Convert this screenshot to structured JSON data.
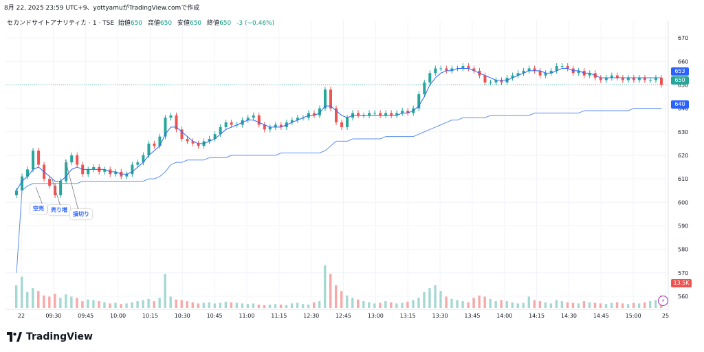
{
  "caption": "8月 22, 2025 23:59 UTC+9、yottyamuがTradingView.comで作成",
  "legend": {
    "symbol": "セカンドサイトアナリティカ · 1 · TSE",
    "open_label": "始値",
    "open_value": "650",
    "high_label": "高値",
    "high_value": "650",
    "low_label": "安値",
    "low_value": "650",
    "close_label": "終値",
    "close_value": "650",
    "change": "-3 (−0.46%)"
  },
  "annotations": [
    "空売",
    "売り増",
    "損切り"
  ],
  "badges": {
    "ma_last": "653",
    "price_last": "650",
    "vwap_last": "640",
    "volume_last": "13.5K"
  },
  "flash_icon": "lightning-icon",
  "brand": "TradingView",
  "colors": {
    "up": "#26a69a",
    "down": "#ef5350",
    "vol_up": "#a5d8d3",
    "vol_down": "#f7a9a7",
    "ma": "#2962ff",
    "vwap": "#5b8def",
    "grid": "#f0f3fa"
  },
  "chart_data": {
    "type": "candlestick",
    "price_axis": {
      "ylim": [
        555,
        675
      ],
      "ticks": [
        670,
        660,
        650,
        640,
        630,
        620,
        610,
        600,
        590,
        580,
        570,
        560
      ]
    },
    "time_axis": {
      "tick_labels": [
        "22",
        "09:30",
        "09:45",
        "10:00",
        "10:15",
        "10:30",
        "10:45",
        "11:00",
        "11:15",
        "12:30",
        "12:45",
        "13:00",
        "13:15",
        "13:30",
        "13:45",
        "14:00",
        "14:15",
        "14:30",
        "14:45",
        "15:00",
        "25"
      ]
    },
    "last_price": 650,
    "series_close": [
      605,
      611,
      614,
      622,
      616,
      610,
      607,
      603,
      609,
      617,
      620,
      616,
      612,
      614,
      615,
      613,
      614,
      612,
      613,
      611,
      612,
      616,
      617,
      620,
      625,
      624,
      628,
      636,
      637,
      631,
      627,
      626,
      625,
      624,
      626,
      627,
      629,
      632,
      634,
      633,
      633,
      635,
      636,
      637,
      633,
      631,
      632,
      633,
      632,
      634,
      635,
      636,
      636,
      638,
      637,
      640,
      648,
      640,
      634,
      632,
      636,
      638,
      637,
      637,
      638,
      638,
      637,
      638,
      637,
      638,
      639,
      638,
      640,
      646,
      651,
      655,
      657,
      657,
      656,
      657,
      657,
      658,
      657,
      656,
      654,
      651,
      651,
      652,
      651,
      653,
      654,
      655,
      656,
      657,
      656,
      654,
      655,
      656,
      658,
      658,
      657,
      655,
      656,
      654,
      655,
      653,
      652,
      653,
      654,
      653,
      652,
      653,
      652,
      653,
      652,
      652,
      653,
      650
    ],
    "ma": [
      605,
      609,
      611,
      614,
      615,
      613,
      611,
      609,
      609,
      611,
      614,
      615,
      614,
      614,
      614,
      614,
      614,
      613,
      613,
      612,
      612,
      613,
      615,
      617,
      620,
      622,
      624,
      629,
      632,
      632,
      630,
      628,
      626,
      625,
      625,
      626,
      627,
      629,
      631,
      632,
      633,
      634,
      635,
      635,
      634,
      633,
      632,
      632,
      632,
      633,
      634,
      635,
      636,
      637,
      637,
      638,
      641,
      641,
      639,
      637,
      636,
      637,
      637,
      637,
      637,
      637,
      637,
      637,
      637,
      637,
      638,
      638,
      639,
      641,
      645,
      650,
      653,
      655,
      656,
      656,
      657,
      657,
      657,
      656,
      655,
      654,
      653,
      652,
      652,
      652,
      653,
      654,
      655,
      656,
      656,
      656,
      655,
      655,
      656,
      657,
      657,
      656,
      656,
      655,
      655,
      654,
      653,
      653,
      653,
      653,
      653,
      653,
      653,
      653,
      653,
      653,
      653,
      653
    ],
    "vwap": [
      570,
      605,
      607,
      608,
      608,
      608,
      608,
      608,
      608,
      608,
      608,
      608,
      609,
      609,
      609,
      609,
      609,
      609,
      609,
      609,
      609,
      609,
      609,
      609,
      610,
      610,
      611,
      613,
      616,
      617,
      617,
      618,
      618,
      618,
      618,
      619,
      619,
      619,
      619,
      620,
      620,
      620,
      620,
      620,
      620,
      620,
      620,
      620,
      621,
      621,
      621,
      621,
      621,
      621,
      621,
      621,
      622,
      624,
      626,
      626,
      626,
      627,
      627,
      627,
      627,
      627,
      627,
      628,
      628,
      628,
      628,
      628,
      628,
      629,
      630,
      631,
      632,
      633,
      634,
      635,
      635,
      636,
      636,
      636,
      636,
      636,
      637,
      637,
      637,
      637,
      637,
      637,
      637,
      637,
      638,
      638,
      638,
      638,
      638,
      638,
      638,
      638,
      638,
      639,
      639,
      639,
      639,
      639,
      639,
      639,
      639,
      639,
      640,
      640,
      640,
      640,
      640,
      640
    ],
    "volume": [
      40,
      55,
      28,
      35,
      30,
      22,
      20,
      25,
      18,
      24,
      20,
      18,
      12,
      15,
      14,
      12,
      10,
      8,
      9,
      7,
      8,
      10,
      12,
      14,
      16,
      12,
      18,
      60,
      20,
      15,
      14,
      12,
      10,
      8,
      9,
      10,
      8,
      9,
      11,
      10,
      9,
      8,
      7,
      8,
      6,
      5,
      6,
      7,
      6,
      5,
      8,
      9,
      7,
      6,
      10,
      12,
      75,
      60,
      40,
      30,
      22,
      18,
      15,
      12,
      10,
      8,
      9,
      12,
      10,
      8,
      9,
      11,
      14,
      18,
      28,
      35,
      40,
      30,
      20,
      16,
      14,
      12,
      10,
      18,
      22,
      20,
      16,
      12,
      14,
      12,
      10,
      8,
      9,
      20,
      14,
      12,
      10,
      8,
      14,
      12,
      10,
      9,
      8,
      12,
      10,
      9,
      8,
      7,
      9,
      10,
      8,
      7,
      9,
      8,
      10,
      12,
      14,
      22
    ]
  }
}
